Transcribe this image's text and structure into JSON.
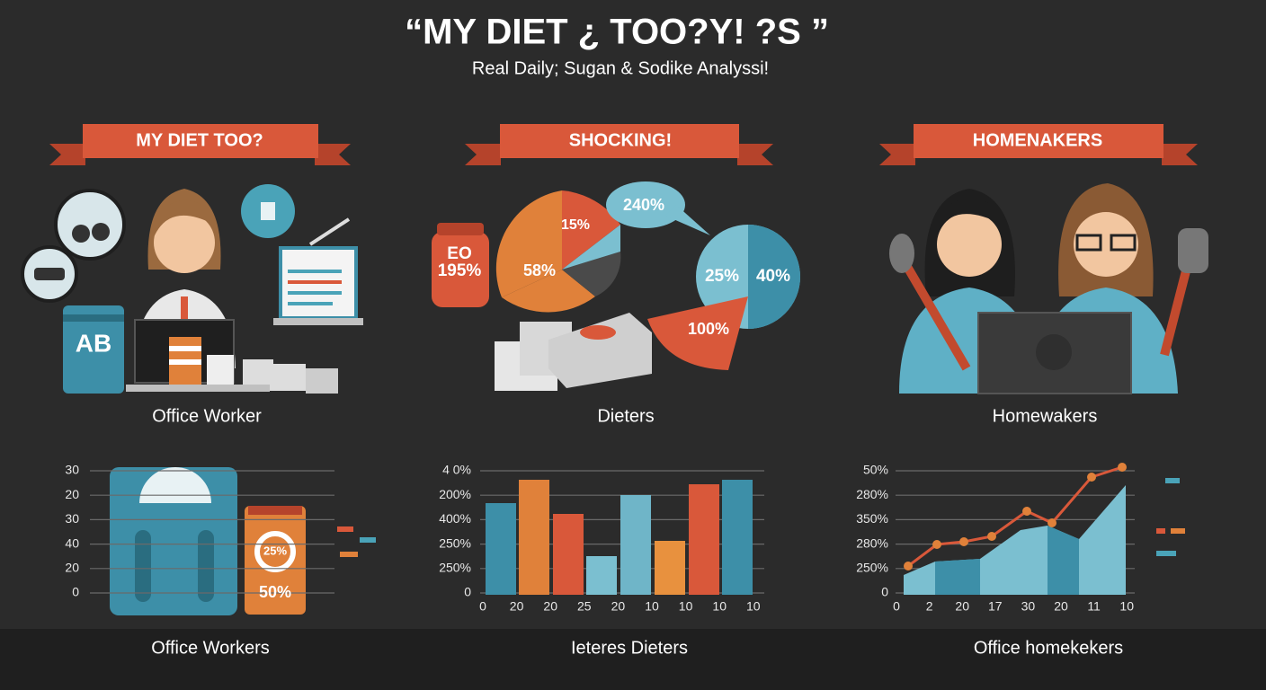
{
  "header": {
    "title": "“MY DIET ¿ TOO?Y! ?S ”",
    "subtitle": "Real Daily; Sugan & Sodike Analyssi!"
  },
  "panels": [
    {
      "ribbon": "MY DIET TOO?",
      "label": "Office Worker",
      "caption": "Office Workers",
      "callouts": [
        "AB",
        "25%",
        "50%"
      ],
      "y_axis": [
        "30",
        "20",
        "30",
        "40",
        "20",
        "0"
      ],
      "x_axis": []
    },
    {
      "ribbon": "SHOCKING!",
      "label": "Dieters",
      "caption": "Ieteres Dieters",
      "callouts": [
        "15%",
        "240%",
        "58%",
        "EO",
        "195%",
        "25%",
        "40%",
        "100%"
      ],
      "y_axis": [
        "4 0%",
        "200%",
        "400%",
        "250%",
        "250%",
        "0"
      ],
      "x_axis": [
        "0",
        "20",
        "20",
        "25",
        "20",
        "10",
        "10",
        "10",
        "10"
      ]
    },
    {
      "ribbon": "HOMENAKERS",
      "label": "Homewakers",
      "caption": "Office homekekers",
      "callouts": [],
      "y_axis": [
        "50%",
        "280%",
        "350%",
        "280%",
        "250%",
        "0"
      ],
      "x_axis": [
        "0",
        "2",
        "20",
        "17",
        "30",
        "20",
        "11",
        "10"
      ]
    }
  ]
}
